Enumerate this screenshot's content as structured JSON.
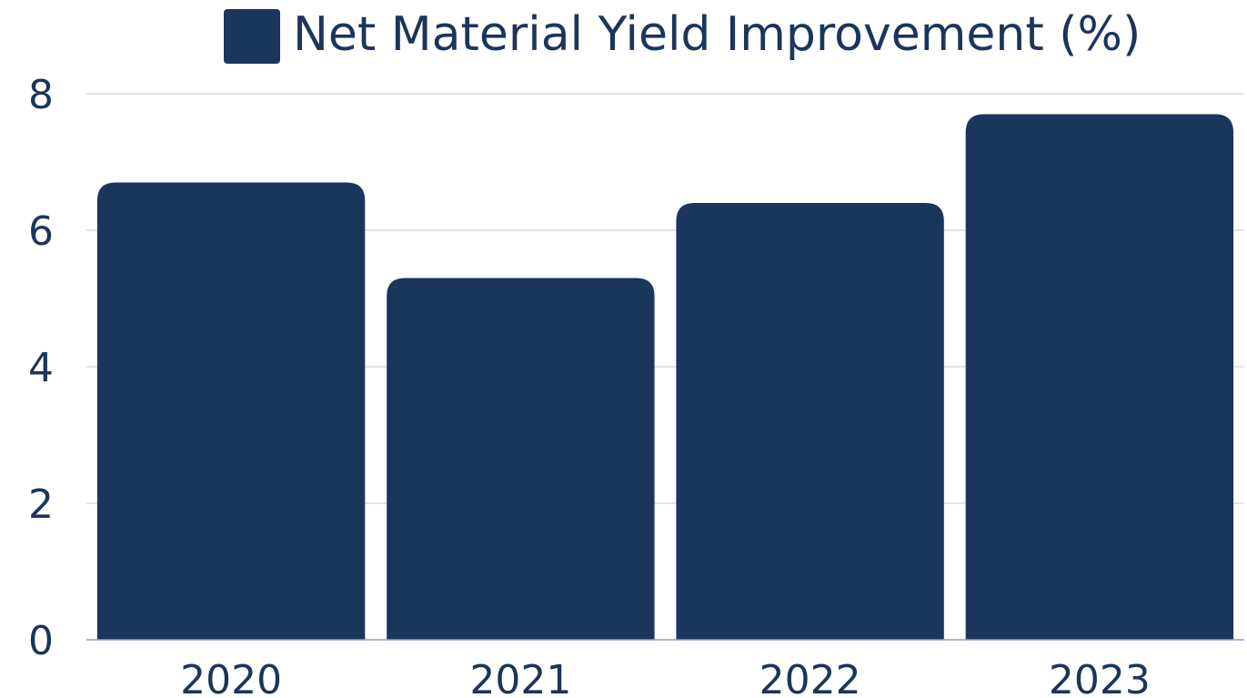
{
  "chart_data": {
    "type": "bar",
    "title": "",
    "xlabel": "",
    "ylabel": "",
    "categories": [
      "2020",
      "2021",
      "2022",
      "2023"
    ],
    "series": [
      {
        "name": "Net Material Yield Improvement (%)",
        "values": [
          6.7,
          5.3,
          6.4,
          7.7
        ],
        "color": "#1b365d"
      }
    ],
    "ylim": [
      0,
      8
    ],
    "yticks": [
      "0",
      "2",
      "4",
      "6",
      "8"
    ],
    "grid": true,
    "legend_position": "top-center",
    "colors": {
      "bar": "#1b365d",
      "text": "#1b355b",
      "grid": "#c9c6dc",
      "axis": "#9b98b8"
    }
  }
}
